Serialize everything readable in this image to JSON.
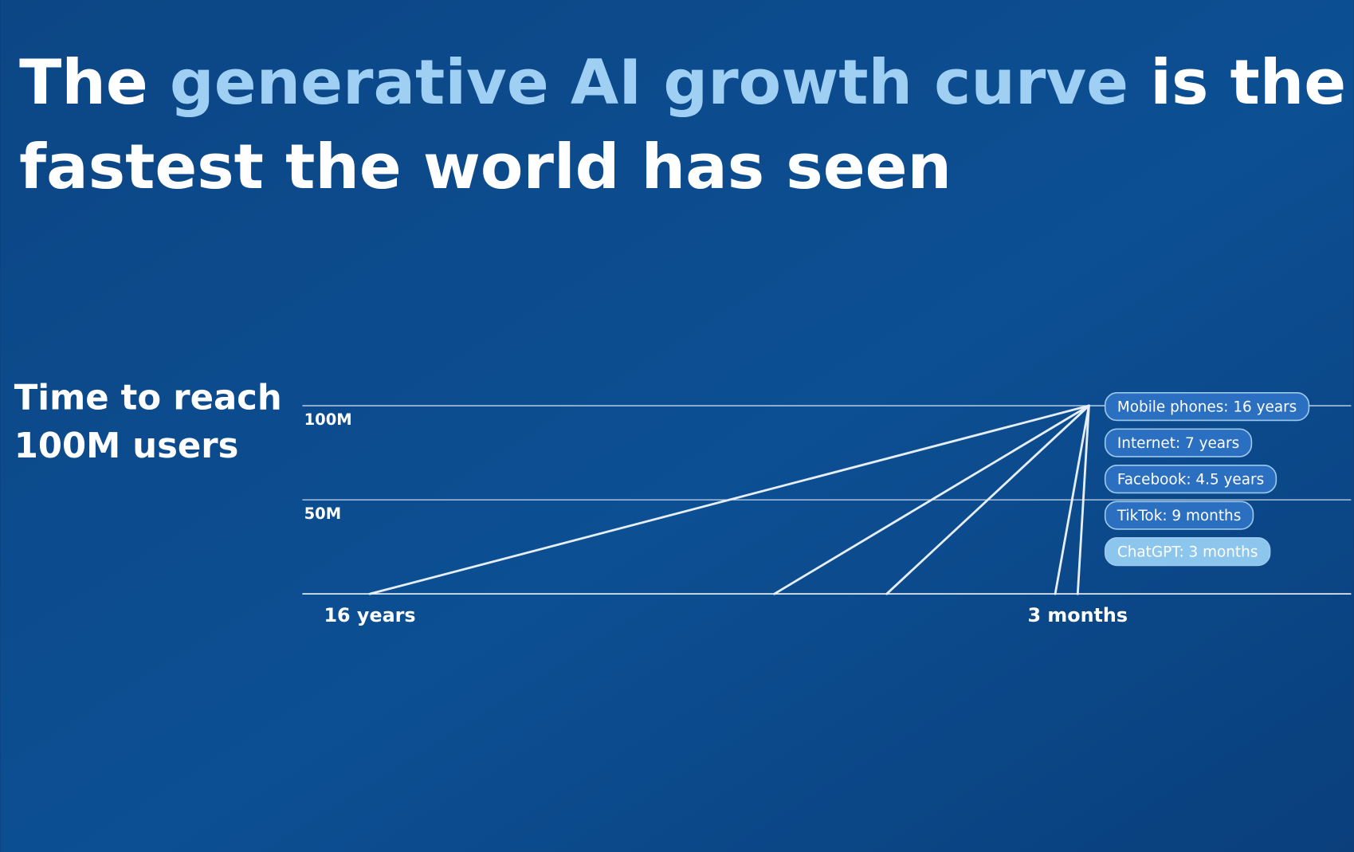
{
  "chart_data": {
    "type": "line",
    "title": [
      "The",
      "generative AI growth curve",
      "is the",
      "fastest the world has seen"
    ],
    "y_label": [
      "Time to reach",
      "100M users"
    ],
    "xlim": [
      210,
      -70
    ],
    "xticks": [
      {
        "value": 192,
        "label": "16 years"
      },
      {
        "value": 3,
        "label": "3 months"
      }
    ],
    "ylim": [
      0,
      100000000
    ],
    "yticks": [
      {
        "value": 50000000,
        "label": "50M"
      },
      {
        "value": 100000000,
        "label": "100M"
      }
    ],
    "grid": true,
    "line_color": "#e6eef7",
    "series": [
      {
        "name": "Mobile phones: 16 years",
        "color": "#2b6fc0",
        "x": [
          192,
          0
        ],
        "values": [
          0,
          100000000
        ]
      },
      {
        "name": "Internet: 7 years",
        "color": "#2b6fc0",
        "x": [
          84,
          0
        ],
        "values": [
          0,
          100000000
        ]
      },
      {
        "name": "Facebook: 4.5 years",
        "color": "#2b6fc0",
        "x": [
          54,
          0
        ],
        "values": [
          0,
          100000000
        ]
      },
      {
        "name": "TikTok: 9 months",
        "color": "#2b6fc0",
        "x": [
          9,
          0
        ],
        "values": [
          0,
          100000000
        ]
      },
      {
        "name": "ChatGPT: 3 months",
        "color": "#8cc6ec",
        "x": [
          3,
          0
        ],
        "values": [
          0,
          100000000
        ]
      }
    ]
  }
}
